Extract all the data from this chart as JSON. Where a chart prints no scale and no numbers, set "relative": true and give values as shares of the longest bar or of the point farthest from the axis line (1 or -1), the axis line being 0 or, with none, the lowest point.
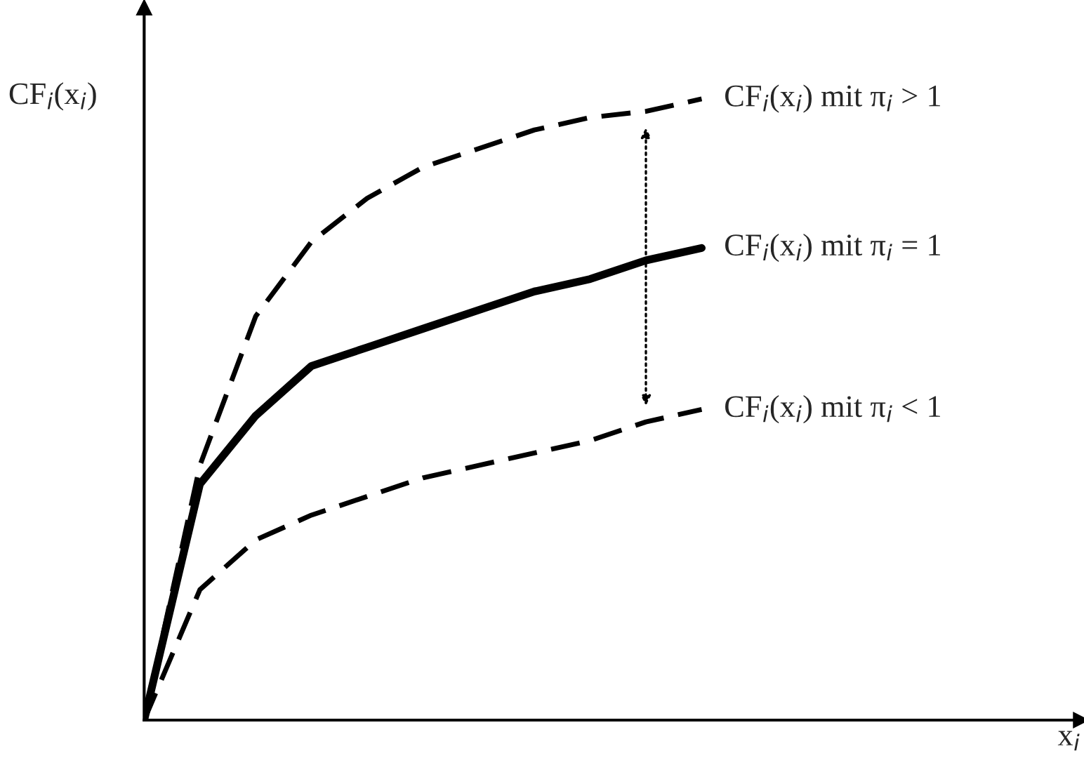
{
  "chart_data": {
    "type": "line",
    "relative": true,
    "annotations": [
      "x$_{i}$"
    ],
    "ylabel": "CF$_{i}$(x$_{i}$)",
    "categories": [
      null,
      null,
      null,
      null,
      null,
      null,
      null,
      null,
      null,
      null,
      null
    ],
    "legend": false,
    "marker": "none",
    "series": [
      {
        "name": "CF$_{i}$(x$_{i}$) mit π$_{i}$ > 1",
        "color": "#000000",
        "line_style": "dashed",
        "values": [
          0,
          0.41,
          0.65,
          0.77,
          0.84,
          0.89,
          0.92,
          0.95,
          0.97,
          0.98,
          1
        ]
      },
      {
        "name": "CF$_{i}$(x$_{i}$) mit π$_{i}$ = 1",
        "color": "#000000",
        "line_style": "solid",
        "values": [
          0,
          0.38,
          0.49,
          0.57,
          0.6,
          0.63,
          0.66,
          0.69,
          0.71,
          0.74,
          0.76
        ]
      },
      {
        "name": "CF$_{i}$(x$_{i}$) mit π$_{i}$ < 1",
        "color": "#000000",
        "line_style": "dashed",
        "values": [
          0,
          0.21,
          0.29,
          0.33,
          0.36,
          0.39,
          0.41,
          0.43,
          0.45,
          0.48,
          0.5
        ]
      }
    ]
  }
}
